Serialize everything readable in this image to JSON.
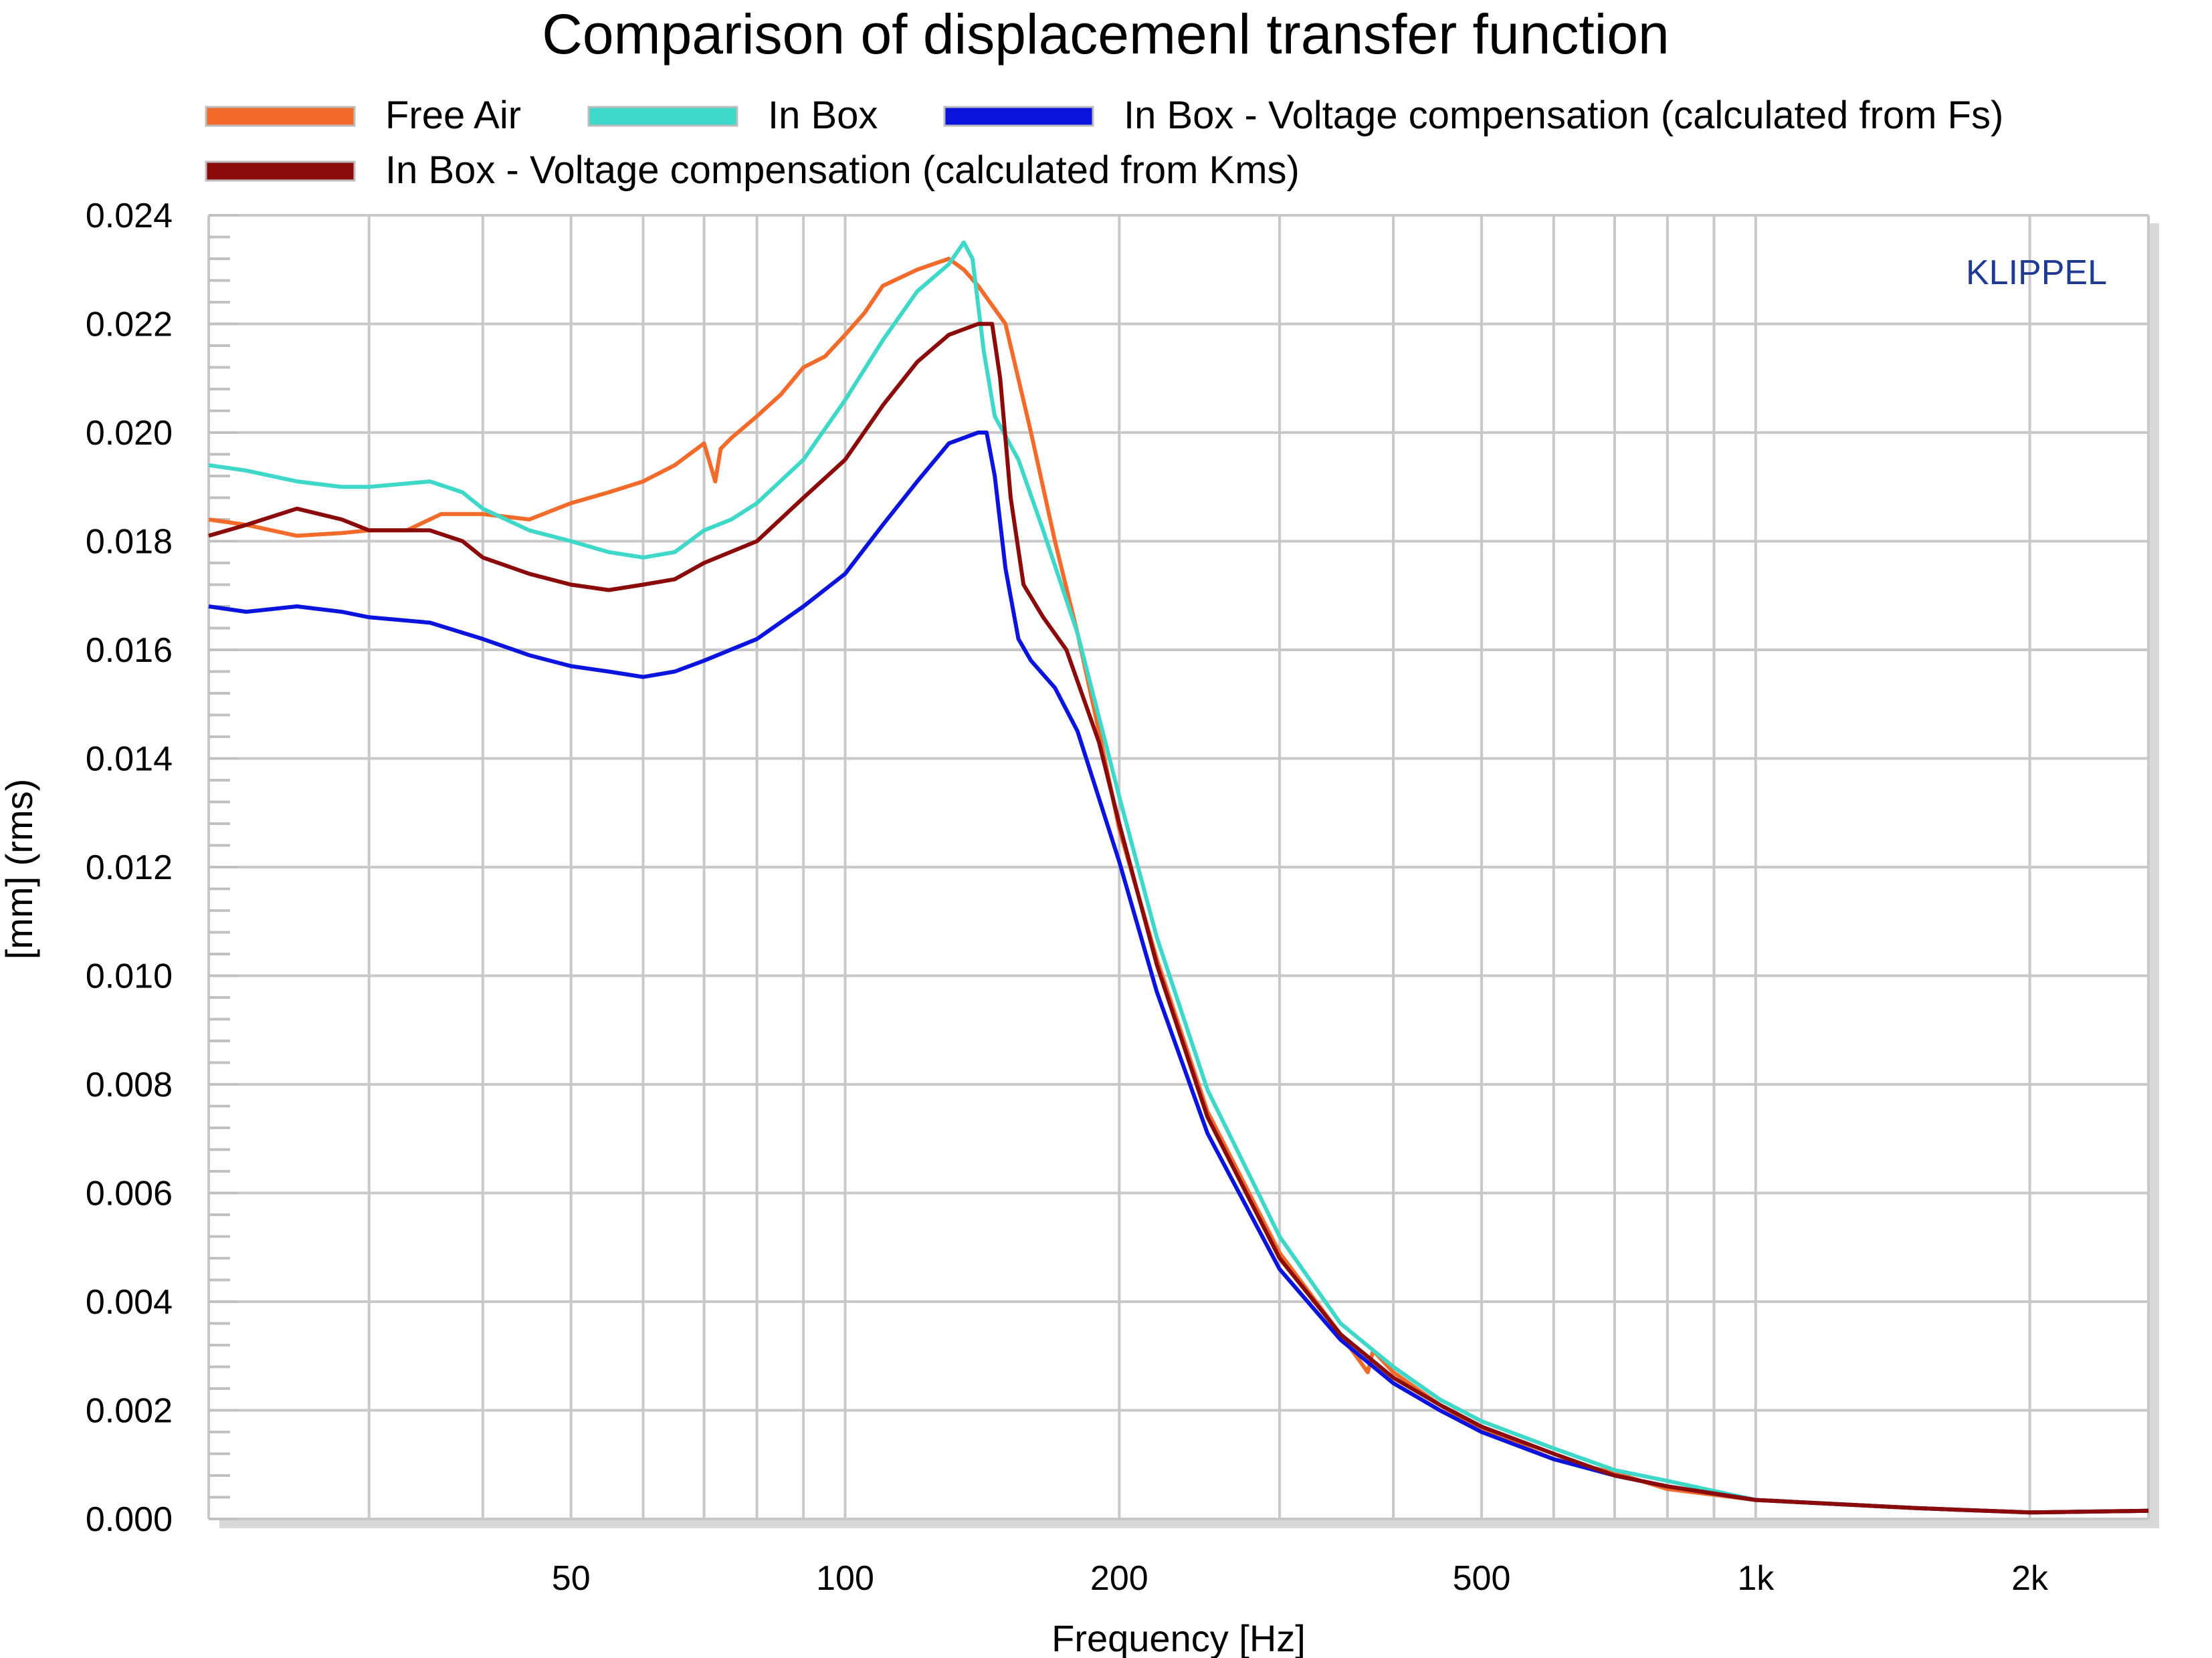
{
  "chart_data": {
    "type": "line",
    "title": "Comparison of displacemenl transfer function",
    "xlabel": "Frequency [Hz]",
    "ylabel": "[mm]  (rms)",
    "brand": "KLIPPEL",
    "x_scale": "log",
    "xlim": [
      20,
      2700
    ],
    "ylim": [
      0,
      0.024
    ],
    "x_ticks": [
      {
        "value": 50,
        "label": "50"
      },
      {
        "value": 100,
        "label": "100"
      },
      {
        "value": 200,
        "label": "200"
      },
      {
        "value": 500,
        "label": "500"
      },
      {
        "value": 1000,
        "label": "1k"
      },
      {
        "value": 2000,
        "label": "2k"
      }
    ],
    "x_grid": [
      30,
      40,
      50,
      60,
      70,
      80,
      90,
      100,
      200,
      300,
      400,
      500,
      600,
      700,
      800,
      900,
      1000,
      2000
    ],
    "y_ticks": [
      {
        "value": 0.0,
        "label": "0.000"
      },
      {
        "value": 0.002,
        "label": "0.002"
      },
      {
        "value": 0.004,
        "label": "0.004"
      },
      {
        "value": 0.006,
        "label": "0.006"
      },
      {
        "value": 0.008,
        "label": "0.008"
      },
      {
        "value": 0.01,
        "label": "0.010"
      },
      {
        "value": 0.012,
        "label": "0.012"
      },
      {
        "value": 0.014,
        "label": "0.014"
      },
      {
        "value": 0.016,
        "label": "0.016"
      },
      {
        "value": 0.018,
        "label": "0.018"
      },
      {
        "value": 0.02,
        "label": "0.020"
      },
      {
        "value": 0.022,
        "label": "0.022"
      },
      {
        "value": 0.024,
        "label": "0.024"
      }
    ],
    "grid": true,
    "legend_position": "top",
    "series": [
      {
        "name": "Free Air",
        "color": "#f26b2a",
        "points": [
          [
            20,
            0.0184
          ],
          [
            22,
            0.0183
          ],
          [
            25,
            0.0181
          ],
          [
            28,
            0.01815
          ],
          [
            30,
            0.0182
          ],
          [
            33,
            0.0182
          ],
          [
            36,
            0.0185
          ],
          [
            40,
            0.0185
          ],
          [
            45,
            0.0184
          ],
          [
            50,
            0.0187
          ],
          [
            55,
            0.0189
          ],
          [
            60,
            0.0191
          ],
          [
            65,
            0.0194
          ],
          [
            70,
            0.0198
          ],
          [
            72,
            0.0191
          ],
          [
            73,
            0.0197
          ],
          [
            75,
            0.0199
          ],
          [
            80,
            0.0203
          ],
          [
            85,
            0.0207
          ],
          [
            90,
            0.0212
          ],
          [
            95,
            0.0214
          ],
          [
            100,
            0.0218
          ],
          [
            105,
            0.0222
          ],
          [
            110,
            0.0227
          ],
          [
            120,
            0.023
          ],
          [
            130,
            0.0232
          ],
          [
            135,
            0.023
          ],
          [
            140,
            0.0227
          ],
          [
            150,
            0.022
          ],
          [
            160,
            0.02
          ],
          [
            170,
            0.018
          ],
          [
            180,
            0.0163
          ],
          [
            190,
            0.0145
          ],
          [
            200,
            0.0127
          ],
          [
            220,
            0.0103
          ],
          [
            250,
            0.0075
          ],
          [
            300,
            0.0049
          ],
          [
            350,
            0.0034
          ],
          [
            375,
            0.0027
          ],
          [
            380,
            0.0031
          ],
          [
            400,
            0.0027
          ],
          [
            450,
            0.0021
          ],
          [
            500,
            0.00165
          ],
          [
            600,
            0.0011
          ],
          [
            700,
            0.00085
          ],
          [
            800,
            0.00055
          ],
          [
            1000,
            0.00035
          ],
          [
            1500,
            0.0002
          ],
          [
            2000,
            0.00012
          ],
          [
            2700,
            0.00015
          ]
        ]
      },
      {
        "name": "In Box",
        "color": "#3fd8c8",
        "points": [
          [
            20,
            0.0194
          ],
          [
            22,
            0.0193
          ],
          [
            25,
            0.0191
          ],
          [
            28,
            0.019
          ],
          [
            30,
            0.019
          ],
          [
            35,
            0.0191
          ],
          [
            38,
            0.0189
          ],
          [
            40,
            0.0186
          ],
          [
            45,
            0.0182
          ],
          [
            50,
            0.018
          ],
          [
            55,
            0.0178
          ],
          [
            60,
            0.0177
          ],
          [
            65,
            0.0178
          ],
          [
            70,
            0.0182
          ],
          [
            75,
            0.0184
          ],
          [
            80,
            0.0187
          ],
          [
            90,
            0.0195
          ],
          [
            100,
            0.0206
          ],
          [
            110,
            0.0217
          ],
          [
            120,
            0.0226
          ],
          [
            130,
            0.0231
          ],
          [
            135,
            0.0235
          ],
          [
            138,
            0.0232
          ],
          [
            142,
            0.0215
          ],
          [
            146,
            0.0203
          ],
          [
            155,
            0.0195
          ],
          [
            165,
            0.0182
          ],
          [
            180,
            0.0163
          ],
          [
            200,
            0.0133
          ],
          [
            220,
            0.0107
          ],
          [
            250,
            0.0079
          ],
          [
            300,
            0.0052
          ],
          [
            350,
            0.0036
          ],
          [
            400,
            0.0028
          ],
          [
            450,
            0.0022
          ],
          [
            500,
            0.0018
          ],
          [
            600,
            0.0013
          ],
          [
            700,
            0.0009
          ],
          [
            800,
            0.0007
          ],
          [
            1000,
            0.00035
          ],
          [
            1500,
            0.0002
          ],
          [
            2000,
            0.00012
          ],
          [
            2700,
            0.00015
          ]
        ]
      },
      {
        "name": "In Box - Voltage compensation (calculated from Fs)",
        "color": "#0a14dc",
        "points": [
          [
            20,
            0.0168
          ],
          [
            22,
            0.0167
          ],
          [
            25,
            0.0168
          ],
          [
            28,
            0.0167
          ],
          [
            30,
            0.0166
          ],
          [
            35,
            0.0165
          ],
          [
            40,
            0.0162
          ],
          [
            45,
            0.0159
          ],
          [
            50,
            0.0157
          ],
          [
            55,
            0.0156
          ],
          [
            60,
            0.0155
          ],
          [
            65,
            0.0156
          ],
          [
            70,
            0.0158
          ],
          [
            80,
            0.0162
          ],
          [
            90,
            0.0168
          ],
          [
            100,
            0.0174
          ],
          [
            110,
            0.0183
          ],
          [
            120,
            0.0191
          ],
          [
            130,
            0.0198
          ],
          [
            140,
            0.02
          ],
          [
            143,
            0.02
          ],
          [
            146,
            0.0192
          ],
          [
            150,
            0.0175
          ],
          [
            155,
            0.0162
          ],
          [
            160,
            0.0158
          ],
          [
            170,
            0.0153
          ],
          [
            180,
            0.0145
          ],
          [
            200,
            0.0121
          ],
          [
            220,
            0.0097
          ],
          [
            250,
            0.0071
          ],
          [
            300,
            0.0046
          ],
          [
            350,
            0.0033
          ],
          [
            400,
            0.0025
          ],
          [
            450,
            0.002
          ],
          [
            500,
            0.0016
          ],
          [
            600,
            0.0011
          ],
          [
            700,
            0.0008
          ],
          [
            800,
            0.0006
          ],
          [
            1000,
            0.00035
          ],
          [
            1500,
            0.0002
          ],
          [
            2000,
            0.00012
          ],
          [
            2700,
            0.00015
          ]
        ]
      },
      {
        "name": "In Box - Voltage compensation (calculated from Kms)",
        "color": "#8b0a0a",
        "points": [
          [
            20,
            0.0181
          ],
          [
            22,
            0.0183
          ],
          [
            25,
            0.0186
          ],
          [
            28,
            0.0184
          ],
          [
            30,
            0.0182
          ],
          [
            35,
            0.0182
          ],
          [
            38,
            0.018
          ],
          [
            40,
            0.0177
          ],
          [
            45,
            0.0174
          ],
          [
            50,
            0.0172
          ],
          [
            55,
            0.0171
          ],
          [
            60,
            0.0172
          ],
          [
            65,
            0.0173
          ],
          [
            70,
            0.0176
          ],
          [
            80,
            0.018
          ],
          [
            90,
            0.0188
          ],
          [
            100,
            0.0195
          ],
          [
            110,
            0.0205
          ],
          [
            120,
            0.0213
          ],
          [
            130,
            0.0218
          ],
          [
            140,
            0.022
          ],
          [
            145,
            0.022
          ],
          [
            148,
            0.021
          ],
          [
            152,
            0.0188
          ],
          [
            157,
            0.0172
          ],
          [
            165,
            0.0166
          ],
          [
            175,
            0.016
          ],
          [
            190,
            0.0143
          ],
          [
            200,
            0.0128
          ],
          [
            220,
            0.0102
          ],
          [
            250,
            0.0074
          ],
          [
            300,
            0.0048
          ],
          [
            350,
            0.0034
          ],
          [
            400,
            0.0026
          ],
          [
            450,
            0.0021
          ],
          [
            500,
            0.0017
          ],
          [
            600,
            0.0012
          ],
          [
            700,
            0.0008
          ],
          [
            800,
            0.0006
          ],
          [
            1000,
            0.00035
          ],
          [
            1500,
            0.0002
          ],
          [
            2000,
            0.00012
          ],
          [
            2700,
            0.00015
          ]
        ]
      }
    ]
  }
}
